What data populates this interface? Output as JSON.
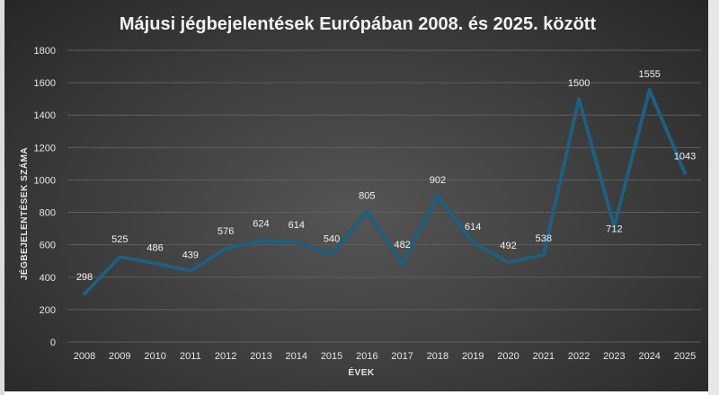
{
  "chart_data": {
    "type": "line",
    "title": "Májusi jégbejelentések Európában 2008. és 2025. között",
    "xlabel": "ÉVEK",
    "ylabel": "JÉGBEJELENTÉSEK SZÁMA",
    "ylim": [
      0,
      1800
    ],
    "y_ticks": [
      "0",
      "200",
      "400",
      "600",
      "800",
      "1000",
      "1200",
      "1400",
      "1600",
      "1800"
    ],
    "grid": true,
    "legend": "none",
    "categories": [
      "2008",
      "2009",
      "2010",
      "2011",
      "2012",
      "2013",
      "2014",
      "2015",
      "2016",
      "2017",
      "2018",
      "2019",
      "2020",
      "2021",
      "2022",
      "2023",
      "2024",
      "2025"
    ],
    "series": [
      {
        "values": [
          298,
          525,
          486,
          439,
          576,
          624,
          614,
          540,
          805,
          482,
          902,
          614,
          492,
          538,
          1500,
          712,
          1555,
          1043
        ]
      }
    ],
    "data_labels": [
      "298",
      "525",
      "486",
      "439",
      "576",
      "624",
      "614",
      "540",
      "805",
      "482",
      "902",
      "614",
      "492",
      "538",
      "1500",
      "712",
      "1555",
      "1043"
    ],
    "colors": {
      "line": "#1f5f7f",
      "line_glow": "#0d2f40"
    }
  }
}
